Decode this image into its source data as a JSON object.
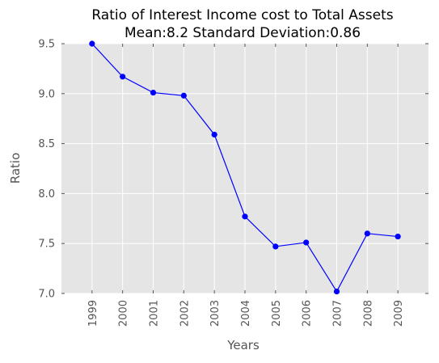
{
  "chart_data": {
    "type": "line",
    "title": "Ratio of Interest Income cost to Total Assets",
    "subtitle": "Mean:8.2 Standard Deviation:0.86",
    "xlabel": "Years",
    "ylabel": "Ratio",
    "categories": [
      "1999",
      "2000",
      "2001",
      "2002",
      "2003",
      "2004",
      "2005",
      "2006",
      "2007",
      "2008",
      "2009"
    ],
    "series": [
      {
        "values": [
          9.5,
          9.17,
          9.01,
          8.98,
          8.59,
          7.77,
          7.47,
          7.51,
          7.02,
          7.6,
          7.57
        ]
      }
    ],
    "ylim": [
      7.0,
      9.5
    ],
    "yticks": [
      "7.0",
      "7.5",
      "8.0",
      "8.5",
      "9.0",
      "9.5"
    ],
    "grid": true,
    "colors": {
      "plot_background": "#e5e5e5",
      "grid": "#ffffff",
      "line": "#0000ff",
      "marker": "#0000ff",
      "text": "#555555",
      "title": "#000000"
    }
  }
}
